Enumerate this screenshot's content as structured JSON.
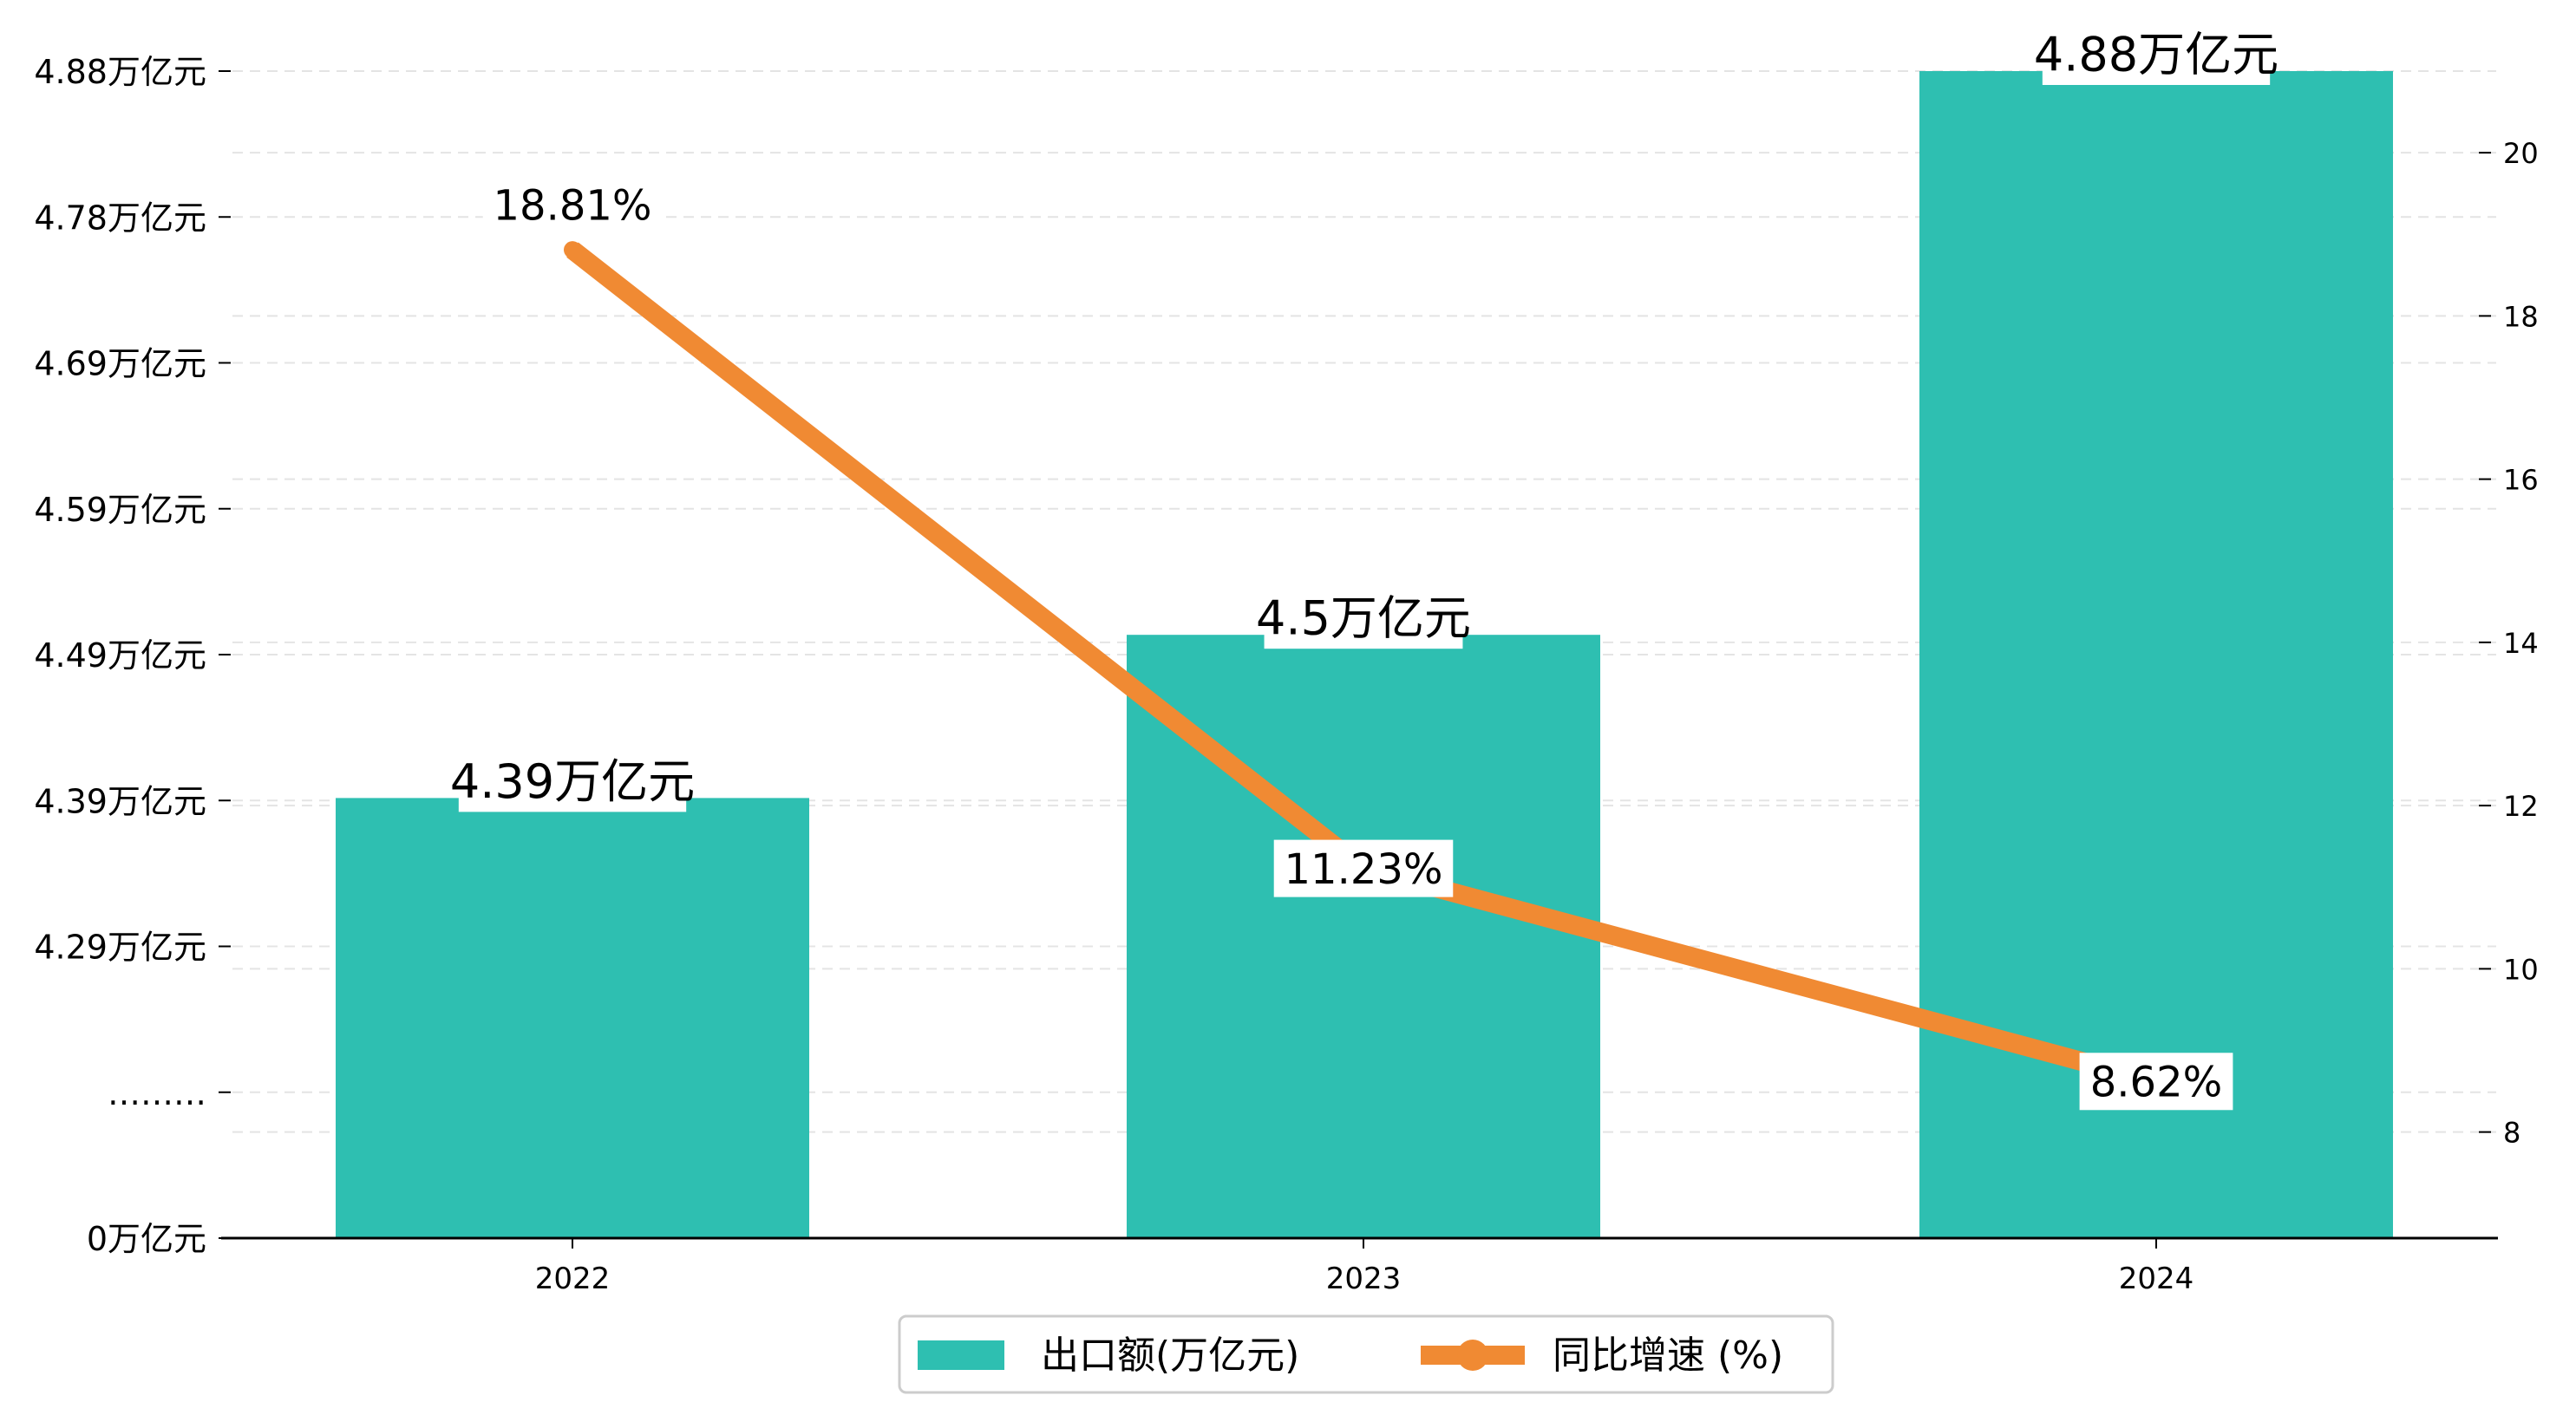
{
  "chart_data": {
    "type": "bar+line",
    "categories": [
      "2022",
      "2023",
      "2024"
    ],
    "bar_series": {
      "name": "出口额(万亿元)",
      "values": [
        4.39,
        4.5,
        4.88
      ],
      "data_labels": [
        "4.39万亿元",
        "4.5万亿元",
        "4.88万亿元"
      ],
      "color": "#2EBFB1"
    },
    "line_series": {
      "name": "同比增速 (%)",
      "values": [
        18.81,
        11.23,
        8.62
      ],
      "data_labels": [
        "18.81%",
        "11.23%",
        "8.62%"
      ],
      "color": "#F08A33"
    },
    "y_left": {
      "tick_labels": [
        "0万亿元",
        "………",
        "4.29万亿元",
        "4.39万亿元",
        "4.49万亿元",
        "4.59万亿元",
        "4.69万亿元",
        "4.78万亿元",
        "4.88万亿元"
      ],
      "broken_axis": true
    },
    "y_right": {
      "ticks": [
        8,
        10,
        12,
        14,
        16,
        18,
        20
      ],
      "ylim": [
        6.7,
        21.0
      ]
    },
    "grid": "horizontal-dashed",
    "legend_position": "bottom-center"
  }
}
